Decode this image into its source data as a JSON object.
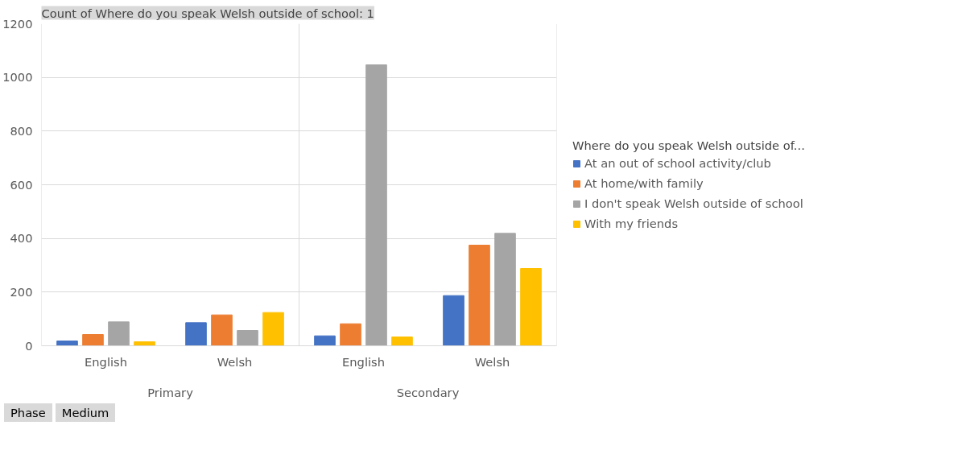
{
  "chart_data": {
    "type": "bar",
    "title": "Count of Where do you speak Welsh outside of school: 1",
    "legend_title": "Where do you speak Welsh outside of...",
    "categories": [
      "English",
      "Welsh",
      "English",
      "Welsh"
    ],
    "series": [
      {
        "name": "At an out of school activity/club",
        "color": "#4472c4",
        "values": [
          18,
          86,
          37,
          187
        ]
      },
      {
        "name": "At home/with family",
        "color": "#ed7d31",
        "values": [
          42,
          115,
          82,
          375
        ]
      },
      {
        "name": "I don't speak Welsh outside of school",
        "color": "#a5a5a5",
        "values": [
          89,
          57,
          1047,
          419
        ]
      },
      {
        "name": "With my friends",
        "color": "#ffc000",
        "values": [
          15,
          124,
          33,
          288
        ]
      }
    ],
    "annotations": [
      "Primary",
      "Secondary",
      "Phase",
      "Medium"
    ],
    "ylim": [
      0,
      1200
    ],
    "yticks": [
      0,
      200,
      400,
      600,
      800,
      1000,
      1200
    ],
    "grid": "y",
    "legend": "right"
  }
}
